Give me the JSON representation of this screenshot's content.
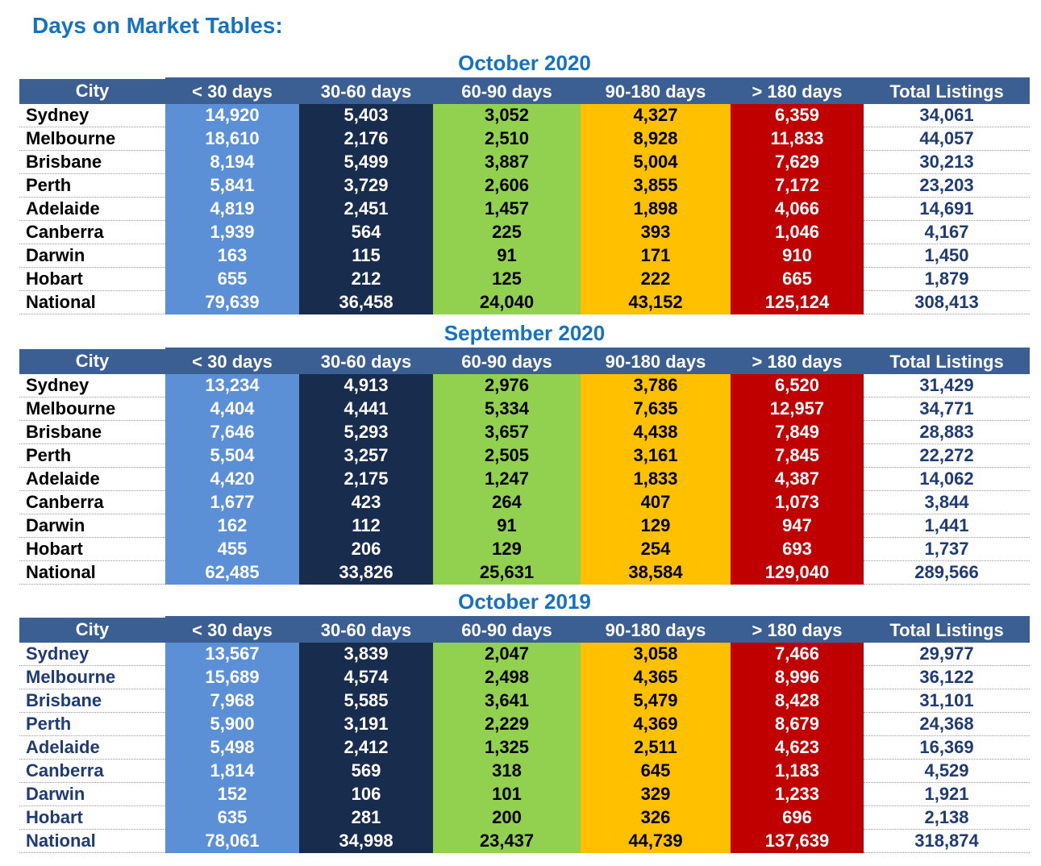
{
  "title": "Days on Market Tables:",
  "headers": [
    "City",
    "< 30 days",
    "30-60 days",
    "60-90 days",
    "90-180 days",
    "> 180 days",
    "Total Listings"
  ],
  "colors": {
    "title": "#1572c3",
    "header": "#3b5f92",
    "under_30": "#5b90d6",
    "d30_60": "#182c4e",
    "d60_90": "#92d050",
    "d90_180": "#ffc000",
    "over_180": "#c00000",
    "city_text_2019": "#1f3b73"
  },
  "tables": [
    {
      "period": "October 2020",
      "rows": [
        {
          "city": "Sydney",
          "lt30": "14,920",
          "d30_60": "5,403",
          "d60_90": "3,052",
          "d90_180": "4,327",
          "gt180": "6,359",
          "total": "34,061"
        },
        {
          "city": "Melbourne",
          "lt30": "18,610",
          "d30_60": "2,176",
          "d60_90": "2,510",
          "d90_180": "8,928",
          "gt180": "11,833",
          "total": "44,057"
        },
        {
          "city": "Brisbane",
          "lt30": "8,194",
          "d30_60": "5,499",
          "d60_90": "3,887",
          "d90_180": "5,004",
          "gt180": "7,629",
          "total": "30,213"
        },
        {
          "city": "Perth",
          "lt30": "5,841",
          "d30_60": "3,729",
          "d60_90": "2,606",
          "d90_180": "3,855",
          "gt180": "7,172",
          "total": "23,203"
        },
        {
          "city": "Adelaide",
          "lt30": "4,819",
          "d30_60": "2,451",
          "d60_90": "1,457",
          "d90_180": "1,898",
          "gt180": "4,066",
          "total": "14,691"
        },
        {
          "city": "Canberra",
          "lt30": "1,939",
          "d30_60": "564",
          "d60_90": "225",
          "d90_180": "393",
          "gt180": "1,046",
          "total": "4,167"
        },
        {
          "city": "Darwin",
          "lt30": "163",
          "d30_60": "115",
          "d60_90": "91",
          "d90_180": "171",
          "gt180": "910",
          "total": "1,450"
        },
        {
          "city": "Hobart",
          "lt30": "655",
          "d30_60": "212",
          "d60_90": "125",
          "d90_180": "222",
          "gt180": "665",
          "total": "1,879"
        },
        {
          "city": "National",
          "lt30": "79,639",
          "d30_60": "36,458",
          "d60_90": "24,040",
          "d90_180": "43,152",
          "gt180": "125,124",
          "total": "308,413"
        }
      ]
    },
    {
      "period": "September 2020",
      "rows": [
        {
          "city": "Sydney",
          "lt30": "13,234",
          "d30_60": "4,913",
          "d60_90": "2,976",
          "d90_180": "3,786",
          "gt180": "6,520",
          "total": "31,429"
        },
        {
          "city": "Melbourne",
          "lt30": "4,404",
          "d30_60": "4,441",
          "d60_90": "5,334",
          "d90_180": "7,635",
          "gt180": "12,957",
          "total": "34,771"
        },
        {
          "city": "Brisbane",
          "lt30": "7,646",
          "d30_60": "5,293",
          "d60_90": "3,657",
          "d90_180": "4,438",
          "gt180": "7,849",
          "total": "28,883"
        },
        {
          "city": "Perth",
          "lt30": "5,504",
          "d30_60": "3,257",
          "d60_90": "2,505",
          "d90_180": "3,161",
          "gt180": "7,845",
          "total": "22,272"
        },
        {
          "city": "Adelaide",
          "lt30": "4,420",
          "d30_60": "2,175",
          "d60_90": "1,247",
          "d90_180": "1,833",
          "gt180": "4,387",
          "total": "14,062"
        },
        {
          "city": "Canberra",
          "lt30": "1,677",
          "d30_60": "423",
          "d60_90": "264",
          "d90_180": "407",
          "gt180": "1,073",
          "total": "3,844"
        },
        {
          "city": "Darwin",
          "lt30": "162",
          "d30_60": "112",
          "d60_90": "91",
          "d90_180": "129",
          "gt180": "947",
          "total": "1,441"
        },
        {
          "city": "Hobart",
          "lt30": "455",
          "d30_60": "206",
          "d60_90": "129",
          "d90_180": "254",
          "gt180": "693",
          "total": "1,737"
        },
        {
          "city": "National",
          "lt30": "62,485",
          "d30_60": "33,826",
          "d60_90": "25,631",
          "d90_180": "38,584",
          "gt180": "129,040",
          "total": "289,566"
        }
      ]
    },
    {
      "period": "October 2019",
      "rows": [
        {
          "city": "Sydney",
          "lt30": "13,567",
          "d30_60": "3,839",
          "d60_90": "2,047",
          "d90_180": "3,058",
          "gt180": "7,466",
          "total": "29,977"
        },
        {
          "city": "Melbourne",
          "lt30": "15,689",
          "d30_60": "4,574",
          "d60_90": "2,498",
          "d90_180": "4,365",
          "gt180": "8,996",
          "total": "36,122"
        },
        {
          "city": "Brisbane",
          "lt30": "7,968",
          "d30_60": "5,585",
          "d60_90": "3,641",
          "d90_180": "5,479",
          "gt180": "8,428",
          "total": "31,101"
        },
        {
          "city": "Perth",
          "lt30": "5,900",
          "d30_60": "3,191",
          "d60_90": "2,229",
          "d90_180": "4,369",
          "gt180": "8,679",
          "total": "24,368"
        },
        {
          "city": "Adelaide",
          "lt30": "5,498",
          "d30_60": "2,412",
          "d60_90": "1,325",
          "d90_180": "2,511",
          "gt180": "4,623",
          "total": "16,369"
        },
        {
          "city": "Canberra",
          "lt30": "1,814",
          "d30_60": "569",
          "d60_90": "318",
          "d90_180": "645",
          "gt180": "1,183",
          "total": "4,529"
        },
        {
          "city": "Darwin",
          "lt30": "152",
          "d30_60": "106",
          "d60_90": "101",
          "d90_180": "329",
          "gt180": "1,233",
          "total": "1,921"
        },
        {
          "city": "Hobart",
          "lt30": "635",
          "d30_60": "281",
          "d60_90": "200",
          "d90_180": "326",
          "gt180": "696",
          "total": "2,138"
        },
        {
          "city": "National",
          "lt30": "78,061",
          "d30_60": "34,998",
          "d60_90": "23,437",
          "d90_180": "44,739",
          "gt180": "137,639",
          "total": "318,874"
        }
      ]
    }
  ]
}
